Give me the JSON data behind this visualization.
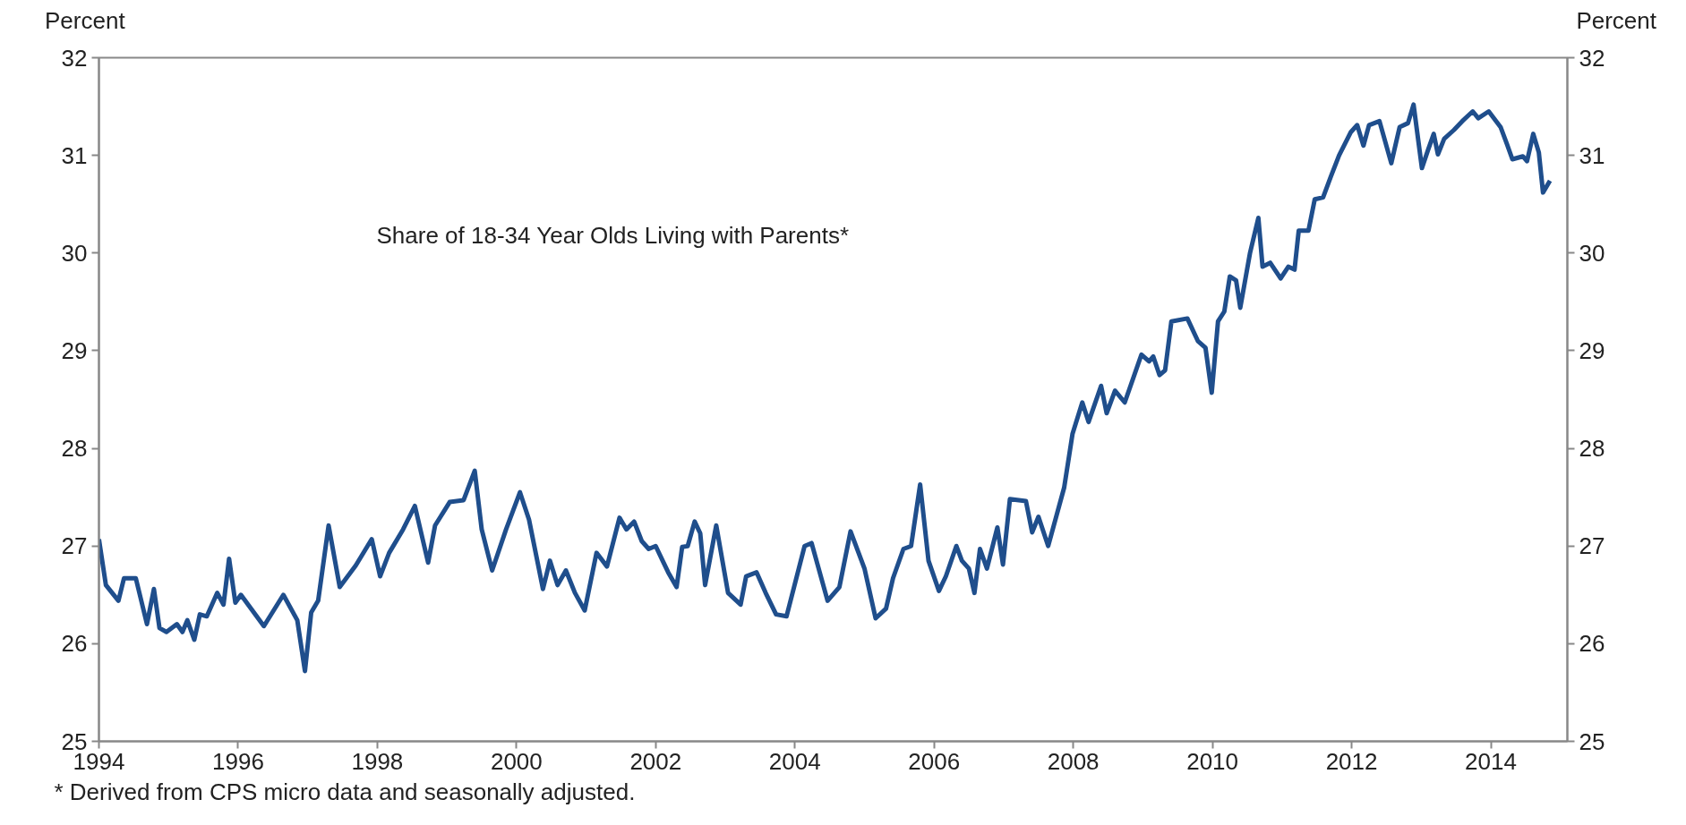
{
  "chart_data": {
    "type": "line",
    "title": "Share of 18-34 Year Olds Living with Parents*",
    "ylabel": "Percent",
    "y2label": "Percent",
    "annotations": [
      "* Derived from CPS micro data and seasonally adjusted."
    ],
    "xlim": [
      1994,
      2015.1
    ],
    "xticks": [
      1994,
      1996,
      1998,
      2000,
      2002,
      2004,
      2006,
      2008,
      2010,
      2012,
      2014
    ],
    "ylim": [
      25,
      32
    ],
    "yticks": [
      25,
      26,
      27,
      28,
      29,
      30,
      31,
      32
    ],
    "y2lim": [
      25,
      32
    ],
    "y2ticks": [
      25,
      26,
      27,
      28,
      29,
      30,
      31,
      32
    ],
    "grid": false,
    "marker": "none",
    "line_style": "solid",
    "series": [
      {
        "color": "#1f4e8c",
        "x": [
          1994.0,
          1994.1,
          1994.28,
          1994.36,
          1994.53,
          1994.69,
          1994.79,
          1994.87,
          1994.97,
          1995.12,
          1995.2,
          1995.27,
          1995.37,
          1995.45,
          1995.55,
          1995.7,
          1995.79,
          1995.87,
          1995.96,
          1996.04,
          1996.37,
          1996.65,
          1996.85,
          1996.96,
          1997.05,
          1997.15,
          1997.3,
          1997.46,
          1997.69,
          1997.92,
          1998.04,
          1998.17,
          1998.37,
          1998.54,
          1998.73,
          1998.83,
          1999.04,
          1999.24,
          1999.4,
          1999.5,
          1999.65,
          1999.85,
          2000.05,
          2000.18,
          2000.38,
          2000.48,
          2000.59,
          2000.71,
          2000.84,
          2000.98,
          2001.15,
          2001.3,
          2001.48,
          2001.58,
          2001.69,
          2001.8,
          2001.9,
          2002.0,
          2002.1,
          2002.18,
          2002.3,
          2002.38,
          2002.46,
          2002.56,
          2002.64,
          2002.71,
          2002.87,
          2003.04,
          2003.22,
          2003.3,
          2003.45,
          2003.58,
          2003.73,
          2003.88,
          2004.14,
          2004.24,
          2004.47,
          2004.64,
          2004.8,
          2005.0,
          2005.16,
          2005.31,
          2005.41,
          2005.56,
          2005.67,
          2005.8,
          2005.92,
          2006.07,
          2006.17,
          2006.32,
          2006.4,
          2006.5,
          2006.58,
          2006.66,
          2006.76,
          2006.91,
          2006.99,
          2007.09,
          2007.32,
          2007.41,
          2007.5,
          2007.64,
          2007.87,
          2007.99,
          2008.13,
          2008.22,
          2008.4,
          2008.48,
          2008.6,
          2008.74,
          2008.98,
          2009.09,
          2009.15,
          2009.24,
          2009.32,
          2009.41,
          2009.64,
          2009.79,
          2009.9,
          2009.99,
          2010.08,
          2010.17,
          2010.25,
          2010.34,
          2010.4,
          2010.54,
          2010.66,
          2010.72,
          2010.83,
          2010.98,
          2011.09,
          2011.18,
          2011.24,
          2011.38,
          2011.47,
          2011.59,
          2011.7,
          2011.82,
          2011.99,
          2012.08,
          2012.17,
          2012.25,
          2012.4,
          2012.57,
          2012.69,
          2012.81,
          2012.89,
          2013.01,
          2013.1,
          2013.18,
          2013.24,
          2013.33,
          2013.47,
          2013.59,
          2013.74,
          2013.82,
          2013.97,
          2014.14,
          2014.23,
          2014.31,
          2014.46,
          2014.52,
          2014.61,
          2014.69,
          2014.75,
          2014.85
        ],
        "values": [
          27.07,
          26.6,
          26.44,
          26.67,
          26.67,
          26.2,
          26.56,
          26.16,
          26.12,
          26.2,
          26.12,
          26.24,
          26.04,
          26.3,
          26.28,
          26.52,
          26.4,
          26.87,
          26.42,
          26.5,
          26.18,
          26.5,
          26.24,
          25.72,
          26.32,
          26.44,
          27.21,
          26.58,
          26.8,
          27.07,
          26.69,
          26.93,
          27.17,
          27.41,
          26.83,
          27.21,
          27.45,
          27.47,
          27.77,
          27.17,
          26.75,
          27.17,
          27.55,
          27.27,
          26.56,
          26.85,
          26.6,
          26.75,
          26.52,
          26.34,
          26.93,
          26.79,
          27.29,
          27.17,
          27.25,
          27.05,
          26.97,
          27.0,
          26.85,
          26.73,
          26.58,
          26.99,
          27.0,
          27.25,
          27.13,
          26.6,
          27.21,
          26.52,
          26.4,
          26.69,
          26.73,
          26.52,
          26.3,
          26.28,
          27.0,
          27.03,
          26.44,
          26.58,
          27.15,
          26.77,
          26.26,
          26.36,
          26.67,
          26.97,
          27.0,
          27.63,
          26.85,
          26.54,
          26.69,
          27.0,
          26.85,
          26.77,
          26.52,
          26.97,
          26.77,
          27.19,
          26.81,
          27.48,
          27.46,
          27.14,
          27.3,
          27.0,
          27.6,
          28.15,
          28.47,
          28.27,
          28.64,
          28.36,
          28.59,
          28.47,
          28.96,
          28.89,
          28.94,
          28.75,
          28.8,
          29.3,
          29.33,
          29.1,
          29.03,
          28.57,
          29.3,
          29.4,
          29.76,
          29.72,
          29.44,
          30.0,
          30.36,
          29.86,
          29.9,
          29.74,
          29.86,
          29.83,
          30.23,
          30.23,
          30.55,
          30.57,
          30.78,
          31.0,
          31.24,
          31.31,
          31.1,
          31.31,
          31.35,
          30.92,
          31.29,
          31.33,
          31.52,
          30.87,
          31.06,
          31.22,
          31.01,
          31.17,
          31.26,
          31.35,
          31.45,
          31.38,
          31.45,
          31.29,
          31.12,
          30.96,
          30.99,
          30.94,
          31.22,
          31.03,
          30.62,
          30.74
        ]
      }
    ]
  }
}
